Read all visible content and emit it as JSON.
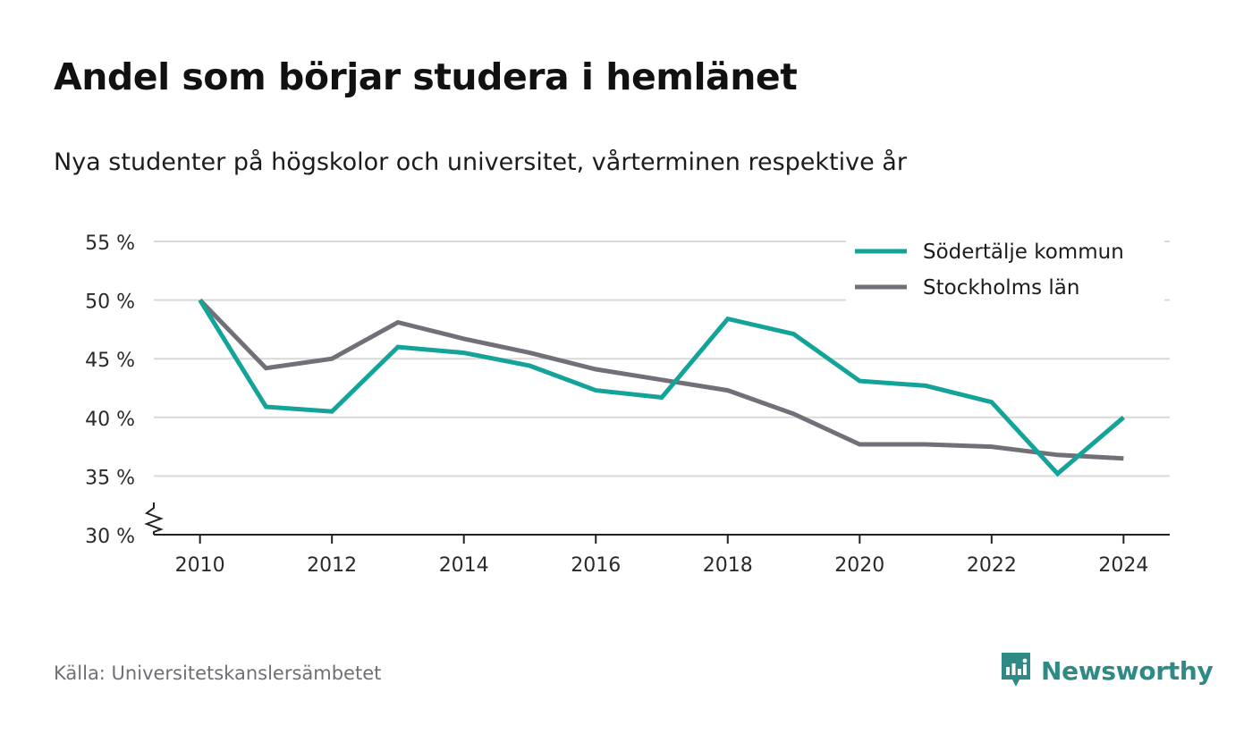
{
  "title": "Andel som börjar studera i hemlänet",
  "subtitle": "Nya studenter på högskolor och universitet, vårterminen respektive år",
  "source": "Källa: Universitetskanslersämbetet",
  "brand": {
    "name": "Newsworthy",
    "icon": "newsworthy-logo-icon",
    "color": "#2f8a86"
  },
  "chart_data": {
    "type": "line",
    "x": [
      2010,
      2011,
      2012,
      2013,
      2014,
      2015,
      2016,
      2017,
      2018,
      2019,
      2020,
      2021,
      2022,
      2023,
      2024
    ],
    "series": [
      {
        "name": "Södertälje kommun",
        "color": "#13a398",
        "values": [
          50.0,
          40.9,
          40.5,
          46.0,
          45.5,
          44.4,
          42.3,
          41.7,
          48.4,
          47.1,
          43.1,
          42.7,
          41.3,
          35.2,
          40.0
        ]
      },
      {
        "name": "Stockholms län",
        "color": "#717078",
        "values": [
          50.0,
          44.2,
          45.0,
          48.1,
          46.7,
          45.5,
          44.1,
          43.2,
          42.3,
          40.3,
          37.7,
          37.7,
          37.5,
          36.8,
          36.5
        ]
      }
    ],
    "xticks": [
      2010,
      2012,
      2014,
      2016,
      2018,
      2020,
      2022,
      2024
    ],
    "xtick_labels": [
      "2010",
      "2012",
      "2014",
      "2016",
      "2018",
      "2020",
      "2022",
      "2024"
    ],
    "yticks": [
      30,
      35,
      40,
      45,
      50,
      55
    ],
    "ytick_labels": [
      "30 %",
      "35 %",
      "40 %",
      "45 %",
      "50 %",
      "55 %"
    ],
    "ylim": [
      30,
      55
    ],
    "xlim": [
      2009.3,
      2024.7
    ],
    "y_axis_break": true,
    "grid": "horizontal",
    "legend": "top-right"
  }
}
